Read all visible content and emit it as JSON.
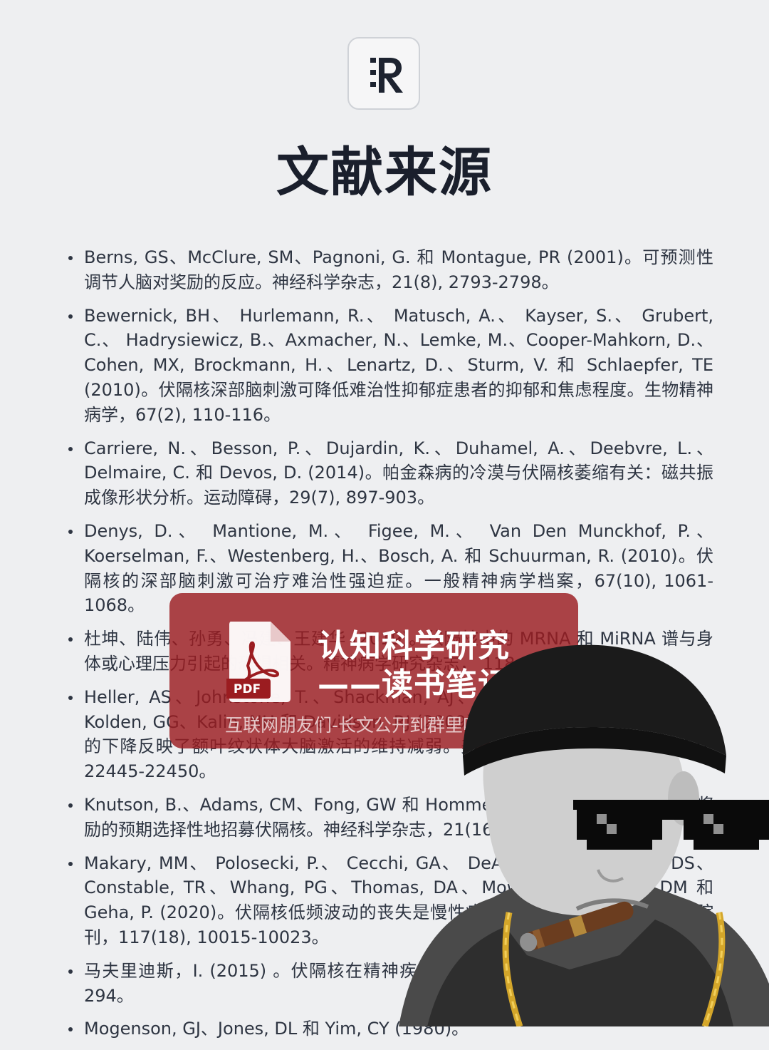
{
  "header": {
    "logo_text": "R",
    "title": "文献来源"
  },
  "references": [
    "Berns, GS、McClure, SM、Pagnoni, G. 和 Montague, PR (2001)。可预测性调节人脑对奖励的反应。神经科学杂志，21(8), 2793-2798。",
    "Bewernick, BH、 Hurlemann, R.、 Matusch, A.、 Kayser, S.、 Grubert, C.、 Hadrysiewicz, B.、Axmacher, N.、Lemke, M.、Cooper-Mahkorn, D.、Cohen, MX, Brockmann, H.、Lenartz, D.、Sturm, V. 和 Schlaepfer, TE (2010)。伏隔核深部脑刺激可降低难治性抑郁症患者的抑郁和焦虑程度。生物精神病学，67(2), 110-116。",
    "Carriere, N.、Besson, P.、Dujardin, K.、Duhamel, A.、Deebvre, L.、Delmaire, C. 和 Devos, D. (2014)。帕金森病的冷漠与伏隔核萎缩有关：磁共振成像形状分析。运动障碍，29(7), 897-903。",
    "Denys, D.、 Mantione, M.、 Figee, M.、 Van Den Munckhof, P.、 Koerselman, F.、Westenberg, H.、Bosch, A. 和 Schuurman, R. (2010)。伏隔核的深部脑刺激可治疗难治性强迫症。一般精神病学档案，67(10), 1061-1068。",
    "杜坤、陆伟、孙勇、冯建、王建华 (2019)。伏隔核中的 MRNA 和 MiRNA 谱与身体或心理压力引起的恐惧相关。精神病学研究杂志， 118, 44-65。",
    "Heller, AS、Johnstone, T.、Shackman, AJ、Light, SN、Peterson, MJ、Kolden, GG、Kalin, NH 和 Davidson, RJ (2009)。抑郁症患者维持积极情绪能力的下降反映了额叶纹状体大脑激活的维持减弱。美国国家科学院院刊，106(52), 22445-22450。",
    "Knutson, B.、Adams, CM、Fong, GW 和 Hommer, D. (2001)。对递增金钱奖励的预期选择性地招募伏隔核。神经科学杂志，21(16)，RC159-RC159。",
    "Makary, MM、 Polosecki, P.、 Cecchi, GA、 DeAraujo, IE、 Barron, DS、 Constable, TR、Whang, PG、Thomas, DA、Mowafi, H.、Small, DM 和 Geha, P. (2020)。伏隔核低频波动的丧失是慢性疼痛的特征。美国国家科学院院刊，117(18), 10015-10023。",
    "马夫里迪斯，I. (2015) 。伏隔核在精神疾病中的作用。精神病学，25(4), 282-294。",
    "Mogenson, GJ、Jones, DL 和 Yim, CY (1980)。"
  ],
  "overlay": {
    "title_line1": "认知科学研究",
    "title_line2": "——读书笔记",
    "subtitle": "互联网朋友们-长文公开到群里吧",
    "pdf_label": "PDF",
    "accent_color": "#9b1c20"
  },
  "photo": {
    "icon": "man-with-sunglasses-and-cigar-icon"
  }
}
